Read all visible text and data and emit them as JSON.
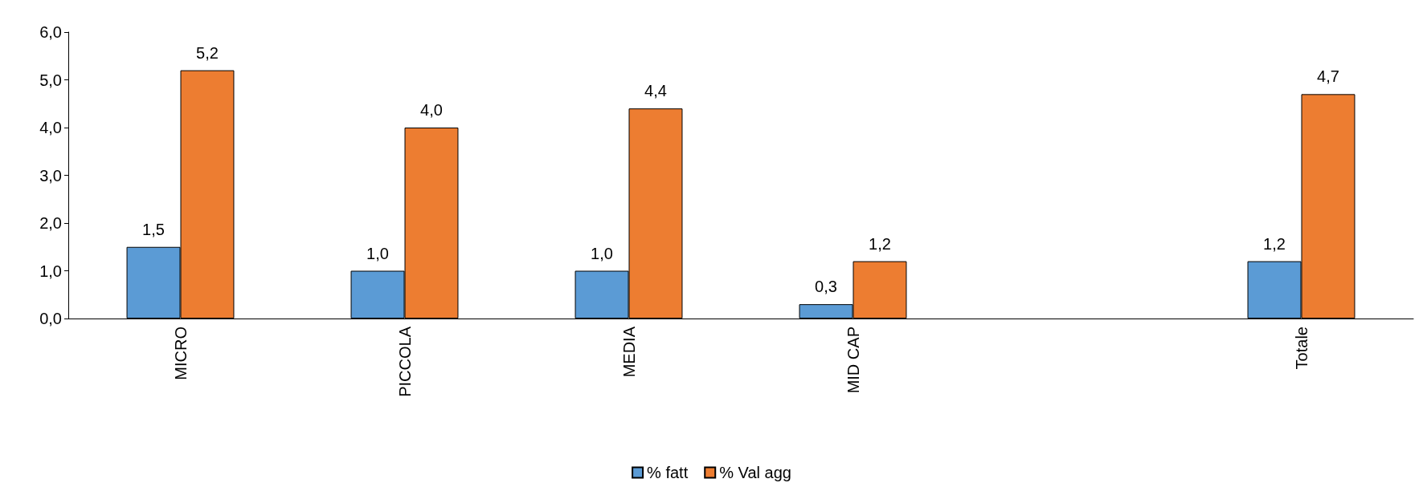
{
  "chart_data": {
    "type": "bar",
    "categories": [
      "MICRO",
      "PICCOLA",
      "MEDIA",
      "MID CAP",
      null,
      "Totale"
    ],
    "series": [
      {
        "name": "% fatt",
        "color": "#5b9bd5",
        "values": [
          1.5,
          1.0,
          1.0,
          0.3,
          null,
          1.2
        ],
        "value_labels": [
          "1,5",
          "1,0",
          "1,0",
          "0,3",
          null,
          "1,2"
        ]
      },
      {
        "name": "% Val agg",
        "color": "#ed7d31",
        "values": [
          5.2,
          4.0,
          4.4,
          1.2,
          null,
          4.7
        ],
        "value_labels": [
          "5,2",
          "4,0",
          "4,4",
          "1,2",
          null,
          "4,7"
        ]
      }
    ],
    "ylim": [
      0,
      6
    ],
    "yticks": [
      {
        "value": 0,
        "label": "0,0"
      },
      {
        "value": 1,
        "label": "1,0"
      },
      {
        "value": 2,
        "label": "2,0"
      },
      {
        "value": 3,
        "label": "3,0"
      },
      {
        "value": 4,
        "label": "4,0"
      },
      {
        "value": 5,
        "label": "5,0"
      },
      {
        "value": 6,
        "label": "6,0"
      }
    ],
    "grid": false,
    "legend": "bottom"
  }
}
